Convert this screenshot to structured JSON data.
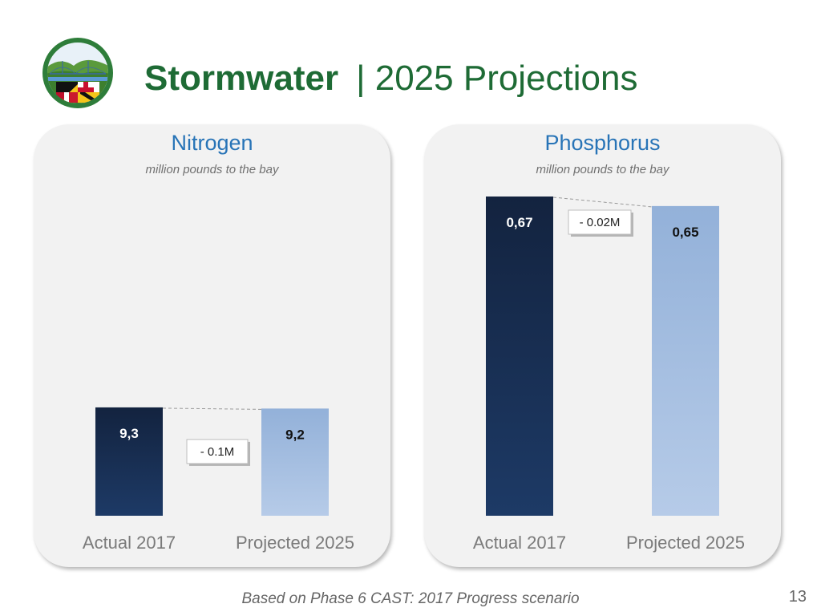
{
  "header": {
    "title_bold": "Stormwater",
    "title_rest": "| 2025 Projections"
  },
  "colors": {
    "title_green": "#1e6b35",
    "panel_title_blue": "#2874b7",
    "actual_bar_top": "#13233f",
    "actual_bar_bottom": "#1d3a66",
    "projected_bar_top": "#93b1d9",
    "projected_bar_bottom": "#b6cbe8"
  },
  "chart_data": [
    {
      "type": "bar",
      "title": "Nitrogen",
      "subtitle": "million pounds to the bay",
      "categories": [
        "Actual 2017",
        "Projected 2025"
      ],
      "values": [
        9.3,
        9.2
      ],
      "value_labels": [
        "9,3",
        "9,2"
      ],
      "ylim": [
        0,
        27.4
      ],
      "delta_label": "- 0.1M",
      "grid": false
    },
    {
      "type": "bar",
      "title": "Phosphorus",
      "subtitle": "million pounds to the bay",
      "categories": [
        "Actual 2017",
        "Projected 2025"
      ],
      "values": [
        0.67,
        0.65
      ],
      "value_labels": [
        "0,67",
        "0,65"
      ],
      "ylim": [
        0,
        0.67
      ],
      "delta_label": "- 0.02M",
      "grid": false
    }
  ],
  "footer": {
    "note": "Based on Phase 6 CAST: 2017 Progress scenario",
    "page_number": "13"
  }
}
